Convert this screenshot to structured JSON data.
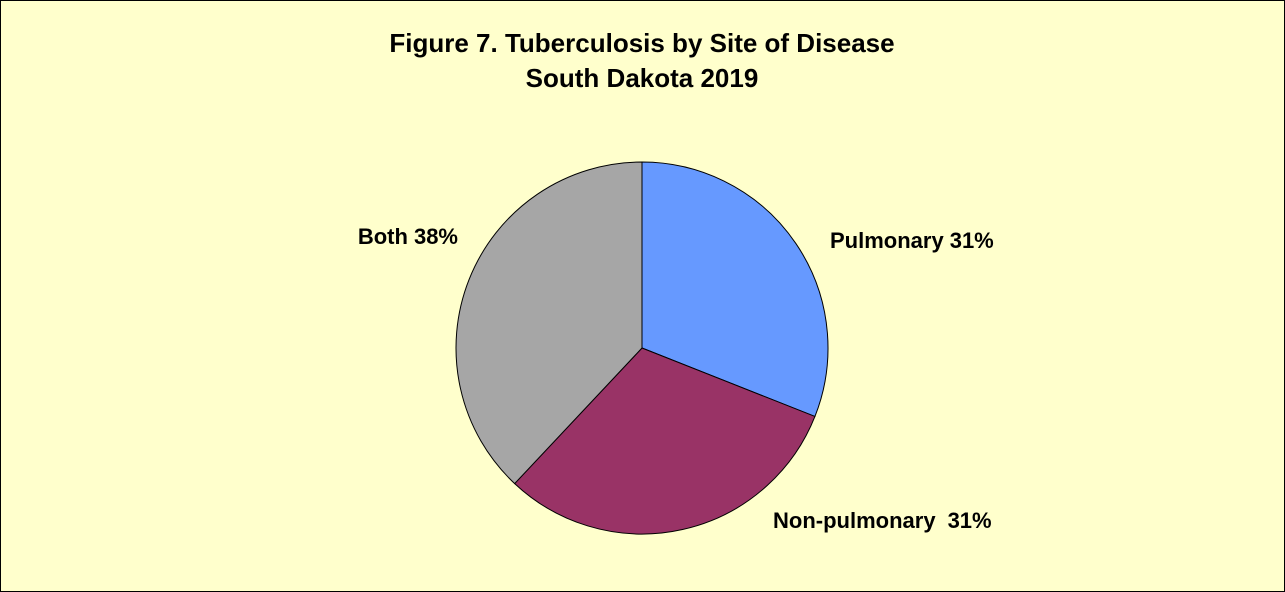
{
  "chart_data": {
    "type": "pie",
    "title": "Figure 7.  Tuberculosis by Site of Disease",
    "subtitle": "South Dakota 2019",
    "categories": [
      "Pulmonary",
      "Non-pulmonary",
      "Both"
    ],
    "values": [
      31,
      31,
      38
    ],
    "value_labels": [
      "31%",
      "31%",
      "38%"
    ],
    "colors": [
      "#6699ff",
      "#993366",
      "#a6a6a6"
    ]
  }
}
